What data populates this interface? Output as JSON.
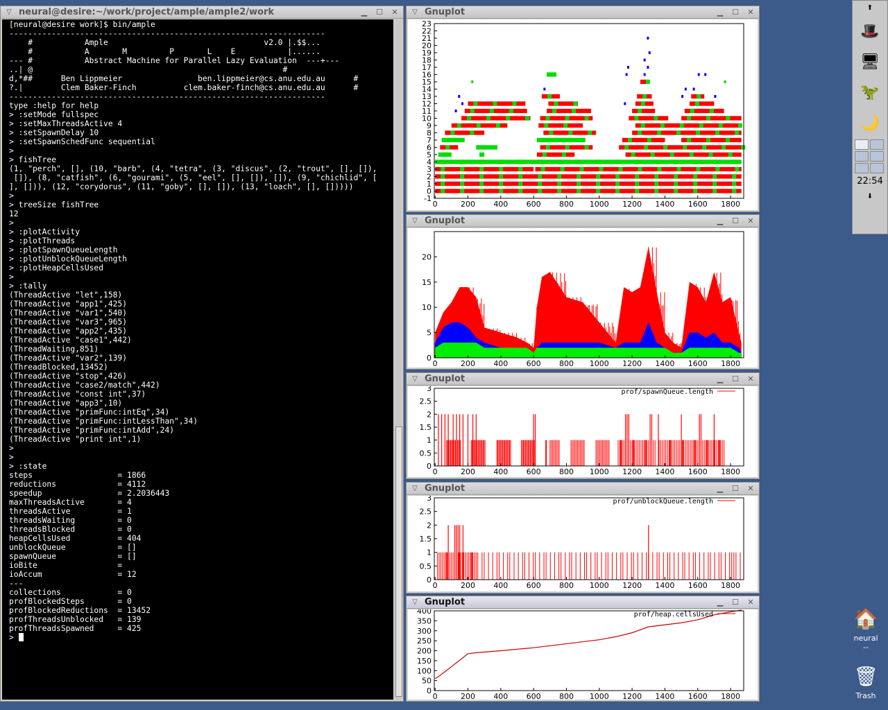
{
  "terminal": {
    "title": "neural@desire:~/work/project/ample/ample2/work",
    "lines": [
      "[neural@desire work]$ bin/ample",
      "-------------------------------------------------------------------",
      "    #           Ample                                 v2.0 |.$$...",
      "    #           A       M         P       L    E           |......",
      "--- #           Abstract Machine for Parallel Lazy Evaluation  ---+---",
      "..| @                                                     #",
      "d,*##      Ben Lippmeier                ben.lippmeier@cs.anu.edu.au      #",
      "?.|        Clem Baker-Finch          clem.baker-finch@cs.anu.edu.au      #",
      "-------------------------------------------------------------------",
      "type :help for help",
      "",
      "> :setMode fullspec",
      "> :setMaxThreadsActive 4",
      "> :setSpawnDelay 10",
      "> :setSpawnSchedFunc sequential",
      ">",
      "> fishTree",
      "(1, \"perch\", [], (10, \"barb\", (4, \"tetra\", (3, \"discus\", (2, \"trout\", [], []),",
      " []), (8, \"catfish\", (6, \"gourami\", (5, \"eel\", [], []), []), (9, \"chichlid\", [",
      "], [])), (12, \"corydorus\", (11, \"goby\", [], []), (13, \"loach\", [], []))))",
      "",
      ">",
      "> treeSize fishTree",
      "12",
      "",
      ">",
      "> :plotActivity",
      "> :plotThreads",
      "> :plotSpawnQueueLength",
      "> :plotUnblockQueueLength",
      "> :plotHeapCellsUsed",
      ">",
      "> :tally",
      "(ThreadActive \"let\",158)",
      "(ThreadActive \"app1\",425)",
      "(ThreadActive \"var1\",540)",
      "(ThreadActive \"var3\",965)",
      "(ThreadActive \"app2\",435)",
      "(ThreadActive \"case1\",442)",
      "(ThreadWaiting,851)",
      "(ThreadActive \"var2\",139)",
      "(ThreadBlocked,13452)",
      "(ThreadActive \"stop\",426)",
      "(ThreadActive \"case2/match\",442)",
      "(ThreadActive \"const int\",37)",
      "(ThreadActive \"app3\",10)",
      "(ThreadActive \"primFunc:intEq\",34)",
      "(ThreadActive \"primFunc:intLessThan\",34)",
      "(ThreadActive \"primFunc:intAdd\",24)",
      "(ThreadActive \"print int\",1)",
      "",
      ">",
      ">",
      "> :state",
      "",
      "steps                  = 1866",
      "reductions             = 4112",
      "speedup                = 2.2036443",
      "maxThreadsActive       = 4",
      "threadsActive          = 1",
      "threadsWaiting         = 0",
      "threadsBlocked         = 0",
      "heapCellsUsed          = 404",
      "unblockQueue           = []",
      "spawnQueue             = []",
      "ioBite                 =",
      "ioAccum                = 12",
      "---",
      "collections            = 0",
      "profBlockedSteps       = 0",
      "profBlockedReductions  = 13452",
      "profThreadsUnblocked   = 139",
      "profThreadsSpawned     = 425",
      "",
      "> "
    ]
  },
  "gnuplot": {
    "title": "Gnuplot"
  },
  "chart_data": [
    {
      "type": "scatter",
      "title": "",
      "xlabel": "",
      "ylabel": "",
      "xlim": [
        -5,
        1880
      ],
      "ylim": [
        -1,
        23
      ],
      "x_ticks": [
        0,
        200,
        400,
        600,
        800,
        1000,
        1200,
        1400,
        1600,
        1800
      ],
      "y_ticks": [
        -1,
        0,
        1,
        2,
        3,
        4,
        5,
        6,
        7,
        8,
        9,
        10,
        11,
        12,
        13,
        14,
        15,
        16,
        17,
        18,
        19,
        20,
        21,
        22,
        23
      ],
      "series": [
        {
          "color": "#ff0000"
        },
        {
          "color": "#00cc00"
        },
        {
          "color": "#0000ff"
        }
      ],
      "bars": [
        [
          0,
          0,
          1866,
          "r"
        ],
        [
          0,
          1,
          1866,
          "r"
        ],
        [
          0,
          2,
          1866,
          "r"
        ],
        [
          0,
          3,
          600,
          "r"
        ],
        [
          610,
          3,
          1866,
          "r"
        ],
        [
          0,
          4,
          1866,
          "g"
        ],
        [
          20,
          5,
          100,
          "g"
        ],
        [
          270,
          5,
          300,
          "g"
        ],
        [
          620,
          5,
          850,
          "r"
        ],
        [
          1160,
          5,
          1866,
          "r"
        ],
        [
          30,
          6,
          140,
          "r"
        ],
        [
          250,
          6,
          380,
          "g"
        ],
        [
          640,
          6,
          960,
          "r"
        ],
        [
          1120,
          6,
          1866,
          "r"
        ],
        [
          40,
          7,
          180,
          "g"
        ],
        [
          620,
          7,
          900,
          "g"
        ],
        [
          1140,
          7,
          1400,
          "r"
        ],
        [
          1500,
          7,
          1866,
          "r"
        ],
        [
          60,
          8,
          300,
          "r"
        ],
        [
          660,
          8,
          980,
          "r"
        ],
        [
          1200,
          8,
          1866,
          "r"
        ],
        [
          100,
          9,
          440,
          "r"
        ],
        [
          630,
          9,
          900,
          "r"
        ],
        [
          1220,
          9,
          1866,
          "r"
        ],
        [
          160,
          10,
          580,
          "r"
        ],
        [
          640,
          10,
          960,
          "r"
        ],
        [
          1180,
          10,
          1420,
          "r"
        ],
        [
          1500,
          10,
          1866,
          "r"
        ],
        [
          180,
          11,
          560,
          "r"
        ],
        [
          680,
          11,
          950,
          "r"
        ],
        [
          1200,
          11,
          1340,
          "r"
        ],
        [
          1520,
          11,
          1760,
          "r"
        ],
        [
          200,
          12,
          550,
          "r"
        ],
        [
          690,
          12,
          870,
          "r"
        ],
        [
          1220,
          12,
          1330,
          "r"
        ],
        [
          1550,
          12,
          1700,
          "r"
        ],
        [
          650,
          13,
          760,
          "r"
        ],
        [
          1230,
          13,
          1320,
          "r"
        ],
        [
          1560,
          13,
          1640,
          "r"
        ],
        [
          1250,
          15,
          1300,
          "r"
        ],
        [
          680,
          16,
          720,
          "g"
        ]
      ],
      "dots": [
        [
          140,
          13,
          "b"
        ],
        [
          160,
          12,
          "b"
        ],
        [
          1290,
          21,
          "b"
        ],
        [
          1300,
          19,
          "b"
        ],
        [
          1270,
          18,
          "b"
        ],
        [
          1290,
          17,
          "b"
        ],
        [
          1270,
          16,
          "b"
        ],
        [
          1170,
          17,
          "b"
        ],
        [
          1160,
          16,
          "b"
        ],
        [
          1600,
          16,
          "b"
        ],
        [
          1640,
          16,
          "b"
        ],
        [
          660,
          14,
          "b"
        ],
        [
          1520,
          14,
          "b"
        ],
        [
          1570,
          14,
          "b"
        ],
        [
          120,
          11,
          "b"
        ],
        [
          1150,
          12,
          "b"
        ],
        [
          1500,
          13,
          "b"
        ],
        [
          1700,
          13,
          "b"
        ],
        [
          220,
          15,
          "g"
        ],
        [
          1760,
          15,
          "g"
        ]
      ]
    },
    {
      "type": "area",
      "title": "",
      "xlabel": "",
      "ylabel": "",
      "xlim": [
        -5,
        1880
      ],
      "ylim": [
        0,
        25
      ],
      "x_ticks": [
        0,
        200,
        400,
        600,
        800,
        1000,
        1200,
        1400,
        1600,
        1800
      ],
      "y_ticks": [
        0,
        5,
        10,
        15,
        20
      ],
      "series": [
        {
          "name": "",
          "color": "#ff0000"
        },
        {
          "name": "",
          "color": "#0000ff"
        },
        {
          "name": "",
          "color": "#00ee00"
        }
      ],
      "x": [
        0,
        50,
        100,
        150,
        200,
        250,
        300,
        400,
        500,
        560,
        600,
        620,
        650,
        700,
        800,
        900,
        1000,
        1100,
        1150,
        1200,
        1250,
        1300,
        1350,
        1400,
        1450,
        1500,
        1550,
        1600,
        1650,
        1700,
        1750,
        1800,
        1850,
        1866
      ],
      "total": [
        5,
        9,
        11,
        14,
        14,
        12,
        6,
        5,
        4,
        3,
        2,
        10,
        16,
        17,
        12,
        11,
        7,
        3,
        14,
        13,
        14,
        22,
        13,
        5,
        3,
        2,
        15,
        14,
        11,
        17,
        11,
        12,
        5,
        3
      ],
      "blue": [
        3,
        6,
        7,
        7,
        6,
        4,
        3,
        2,
        2,
        2,
        1,
        2,
        3,
        3,
        3,
        3,
        3,
        2,
        3,
        3,
        3,
        7,
        3,
        2,
        1,
        1,
        5,
        5,
        4,
        5,
        3,
        3,
        2,
        1
      ],
      "green": [
        2,
        3,
        3,
        3,
        3,
        3,
        2,
        2,
        2,
        2,
        1,
        2,
        2,
        2,
        2,
        2,
        2,
        2,
        2,
        2,
        2,
        2,
        2,
        2,
        1,
        1,
        2,
        2,
        2,
        2,
        2,
        2,
        1,
        1
      ]
    },
    {
      "type": "bar",
      "title": "",
      "xlabel": "",
      "ylabel": "",
      "xlim": [
        -5,
        1880
      ],
      "ylim": [
        0,
        3
      ],
      "x_ticks": [
        0,
        200,
        400,
        600,
        800,
        1000,
        1200,
        1400,
        1600,
        1800
      ],
      "y_ticks": [
        0,
        0.5,
        1,
        1.5,
        2,
        2.5,
        3
      ],
      "series": [
        {
          "name": "prof/spawnQueue.length",
          "color": "#ff0000"
        }
      ],
      "ranges": [
        [
          10,
          640,
          1,
          6
        ],
        [
          640,
          680,
          1,
          2
        ],
        [
          700,
          1100,
          1,
          8
        ],
        [
          1110,
          1350,
          1,
          5
        ],
        [
          1360,
          1766,
          1,
          5
        ]
      ],
      "spikes": [
        [
          20,
          2
        ],
        [
          40,
          2
        ],
        [
          60,
          2
        ],
        [
          80,
          2
        ],
        [
          110,
          2
        ],
        [
          130,
          2
        ],
        [
          150,
          2
        ],
        [
          170,
          2
        ],
        [
          200,
          2
        ],
        [
          230,
          2
        ],
        [
          250,
          2
        ],
        [
          600,
          2
        ],
        [
          610,
          2
        ],
        [
          1160,
          2
        ],
        [
          1170,
          2
        ],
        [
          1180,
          2
        ],
        [
          1310,
          2
        ],
        [
          1320,
          2
        ],
        [
          1360,
          2
        ],
        [
          1500,
          2
        ],
        [
          1610,
          2
        ],
        [
          1620,
          2
        ],
        [
          1700,
          2
        ]
      ]
    },
    {
      "type": "bar",
      "title": "",
      "xlabel": "",
      "ylabel": "",
      "xlim": [
        -5,
        1880
      ],
      "ylim": [
        0,
        3
      ],
      "x_ticks": [
        0,
        200,
        400,
        600,
        800,
        1000,
        1200,
        1400,
        1600,
        1800
      ],
      "y_ticks": [
        0,
        0.5,
        1,
        1.5,
        2,
        2.5,
        3
      ],
      "series": [
        {
          "name": "prof/unblockQueue.length",
          "color": "#ff0000"
        }
      ],
      "ranges": [
        [
          10,
          260,
          1,
          5
        ],
        [
          260,
          1866,
          1,
          13
        ]
      ],
      "spikes": [
        [
          80,
          2
        ],
        [
          120,
          2
        ],
        [
          130,
          2
        ],
        [
          140,
          2
        ],
        [
          150,
          2
        ],
        [
          170,
          2
        ],
        [
          1300,
          2
        ]
      ]
    },
    {
      "type": "line",
      "title": "",
      "xlabel": "",
      "ylabel": "",
      "xlim": [
        -5,
        1880
      ],
      "ylim": [
        0,
        400
      ],
      "x_ticks": [
        0,
        200,
        400,
        600,
        800,
        1000,
        1200,
        1400,
        1600,
        1800
      ],
      "y_ticks": [
        0,
        50,
        100,
        150,
        200,
        250,
        300,
        350,
        400
      ],
      "series": [
        {
          "name": "prof/heap.cellsUsed",
          "color": "#cc0000"
        }
      ],
      "x": [
        0,
        20,
        100,
        200,
        250,
        400,
        600,
        800,
        1000,
        1100,
        1200,
        1250,
        1300,
        1400,
        1500,
        1600,
        1700,
        1800,
        1866
      ],
      "y": [
        60,
        70,
        120,
        185,
        190,
        200,
        215,
        235,
        255,
        270,
        290,
        305,
        320,
        330,
        340,
        355,
        380,
        395,
        404
      ]
    }
  ],
  "pager": {
    "time": "22:54"
  },
  "desktop": {
    "home_label": "neural",
    "home_sub": "--",
    "trash_label": "Trash"
  }
}
